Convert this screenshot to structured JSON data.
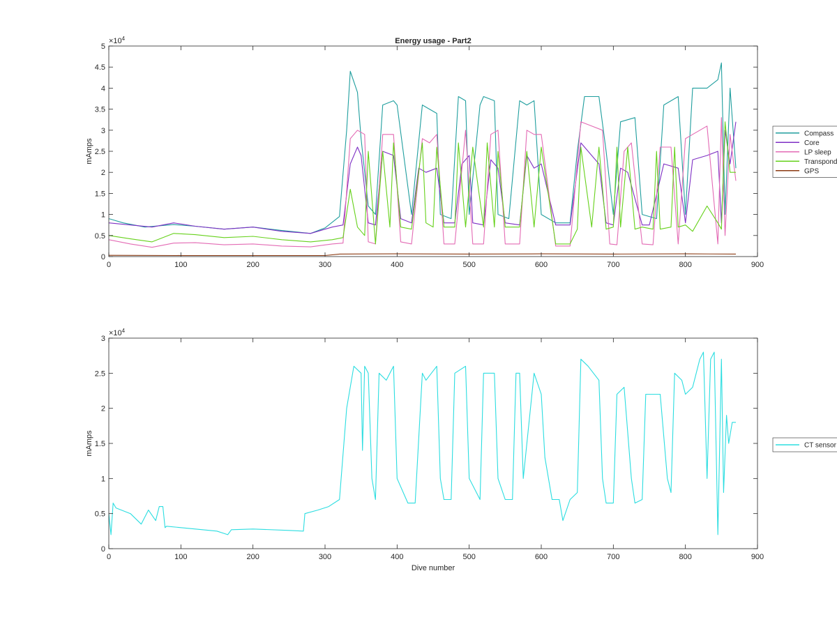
{
  "figure": {
    "background": "#ffffff",
    "axis_color": "#262626"
  },
  "chart_data": [
    {
      "type": "line",
      "title": "Energy usage - Part2",
      "xlabel": "",
      "ylabel": "mAmps",
      "xlim": [
        0,
        900
      ],
      "ylim": [
        0,
        50000
      ],
      "exponent_label": "×10^4",
      "x_ticks": [
        0,
        100,
        200,
        300,
        400,
        500,
        600,
        700,
        800,
        900
      ],
      "y_ticks": [
        0,
        0.5,
        1,
        1.5,
        2,
        2.5,
        3,
        3.5,
        4,
        4.5,
        5
      ],
      "grid": false,
      "legend_placement": "outside-right",
      "series": [
        {
          "name": "Compass",
          "color": "#1f9e9e",
          "x": [
            0,
            20,
            50,
            90,
            120,
            160,
            200,
            240,
            280,
            300,
            320,
            330,
            335,
            345,
            350,
            360,
            370,
            380,
            395,
            400,
            420,
            435,
            445,
            455,
            460,
            475,
            485,
            495,
            500,
            515,
            520,
            535,
            540,
            555,
            570,
            580,
            590,
            600,
            620,
            640,
            650,
            660,
            680,
            690,
            700,
            710,
            730,
            740,
            760,
            770,
            790,
            800,
            810,
            830,
            845,
            850,
            855,
            862,
            870
          ],
          "y": [
            9000,
            8000,
            7000,
            7600,
            7200,
            6500,
            7000,
            6200,
            5500,
            6800,
            9500,
            30000,
            44000,
            39000,
            28000,
            12000,
            10000,
            36000,
            37000,
            36000,
            10000,
            36000,
            35000,
            34000,
            10000,
            9000,
            38000,
            37000,
            10000,
            36000,
            38000,
            37000,
            10000,
            9000,
            37000,
            36000,
            37000,
            10000,
            8000,
            8000,
            25000,
            38000,
            38000,
            25000,
            10000,
            32000,
            33000,
            10000,
            9000,
            36000,
            38000,
            10000,
            40000,
            40000,
            42000,
            46000,
            10000,
            40000,
            21000
          ]
        },
        {
          "name": "Core",
          "color": "#7e2fc4",
          "x": [
            0,
            30,
            60,
            90,
            120,
            160,
            200,
            240,
            280,
            310,
            325,
            335,
            345,
            350,
            360,
            370,
            380,
            395,
            405,
            420,
            430,
            440,
            455,
            465,
            480,
            490,
            500,
            505,
            520,
            530,
            540,
            550,
            570,
            580,
            590,
            600,
            620,
            640,
            655,
            670,
            680,
            690,
            700,
            710,
            720,
            740,
            750,
            770,
            790,
            800,
            810,
            830,
            845,
            850,
            855,
            862,
            870
          ],
          "y": [
            8000,
            7500,
            7000,
            8000,
            7200,
            6500,
            7000,
            6000,
            5500,
            7000,
            7500,
            22000,
            26000,
            24000,
            8000,
            7500,
            25000,
            24000,
            9000,
            8000,
            21000,
            20000,
            21000,
            8000,
            8000,
            22000,
            24000,
            8000,
            7500,
            23000,
            21000,
            8000,
            7500,
            24000,
            21000,
            22000,
            7500,
            7500,
            27000,
            24000,
            22000,
            8000,
            7500,
            21000,
            20000,
            7500,
            7500,
            22000,
            21000,
            8000,
            23000,
            24000,
            25000,
            8000,
            30000,
            22000,
            32000
          ]
        },
        {
          "name": "LP sleep",
          "color": "#e36ab4",
          "x": [
            0,
            30,
            60,
            90,
            120,
            160,
            200,
            240,
            280,
            310,
            325,
            335,
            345,
            355,
            360,
            370,
            380,
            395,
            405,
            420,
            435,
            445,
            455,
            465,
            480,
            495,
            505,
            520,
            530,
            540,
            550,
            570,
            580,
            590,
            600,
            620,
            640,
            655,
            670,
            685,
            695,
            705,
            715,
            725,
            740,
            755,
            765,
            780,
            790,
            800,
            810,
            830,
            845,
            850,
            855,
            862,
            870
          ],
          "y": [
            4000,
            3000,
            2200,
            3200,
            3300,
            2800,
            3000,
            2500,
            2300,
            3000,
            3200,
            28000,
            30000,
            29000,
            3500,
            3000,
            29000,
            29000,
            3500,
            3000,
            28000,
            27000,
            29000,
            3000,
            3000,
            30000,
            3000,
            3000,
            29000,
            30000,
            3000,
            3000,
            30000,
            29000,
            29000,
            2500,
            2500,
            32000,
            31000,
            30000,
            3000,
            2800,
            25000,
            27000,
            3000,
            2800,
            26000,
            26000,
            3000,
            28000,
            29000,
            31000,
            3000,
            33000,
            5000,
            29000,
            18000
          ]
        },
        {
          "name": "Transponder",
          "color": "#66d11b",
          "x": [
            0,
            30,
            60,
            90,
            120,
            160,
            200,
            240,
            280,
            310,
            325,
            335,
            345,
            355,
            360,
            370,
            380,
            390,
            395,
            405,
            420,
            435,
            440,
            450,
            455,
            465,
            480,
            485,
            495,
            505,
            520,
            525,
            535,
            540,
            550,
            570,
            580,
            590,
            600,
            620,
            640,
            650,
            655,
            670,
            680,
            690,
            700,
            705,
            710,
            720,
            730,
            740,
            755,
            760,
            765,
            780,
            785,
            790,
            800,
            810,
            830,
            845,
            850,
            855,
            862,
            870
          ],
          "y": [
            5000,
            4200,
            3500,
            5500,
            5200,
            4500,
            4800,
            4000,
            3500,
            4000,
            4500,
            16000,
            7000,
            5000,
            25000,
            3000,
            25000,
            7000,
            27000,
            7000,
            6500,
            27000,
            8000,
            7000,
            26000,
            7000,
            7000,
            27000,
            7000,
            26000,
            7000,
            27000,
            7000,
            25000,
            7000,
            7000,
            25000,
            7000,
            26000,
            3000,
            3000,
            6500,
            26000,
            7000,
            26000,
            6500,
            7000,
            26000,
            7000,
            26000,
            6500,
            7000,
            6500,
            25000,
            6500,
            7000,
            26000,
            7000,
            7500,
            6000,
            12000,
            8000,
            6500,
            32000,
            20000,
            20000
          ]
        },
        {
          "name": "GPS",
          "color": "#8b3a12",
          "x": [
            0,
            100,
            200,
            300,
            320,
            400,
            500,
            600,
            700,
            800,
            870
          ],
          "y": [
            300,
            250,
            250,
            250,
            600,
            650,
            600,
            650,
            600,
            650,
            600
          ]
        }
      ]
    },
    {
      "type": "line",
      "title": "",
      "xlabel": "Dive number",
      "ylabel": "mAmps",
      "xlim": [
        0,
        900
      ],
      "ylim": [
        0,
        30000
      ],
      "exponent_label": "×10^4",
      "x_ticks": [
        0,
        100,
        200,
        300,
        400,
        500,
        600,
        700,
        800,
        900
      ],
      "y_ticks": [
        0,
        0.5,
        1,
        1.5,
        2,
        2.5,
        3
      ],
      "grid": false,
      "legend_placement": "outside-right",
      "series": [
        {
          "name": "CT sensor",
          "color": "#2bdde0",
          "x": [
            0,
            3,
            6,
            10,
            30,
            45,
            55,
            65,
            70,
            75,
            78,
            80,
            100,
            150,
            165,
            170,
            200,
            250,
            270,
            272,
            290,
            305,
            320,
            330,
            340,
            350,
            352,
            355,
            360,
            365,
            370,
            375,
            385,
            395,
            400,
            415,
            425,
            435,
            440,
            455,
            460,
            465,
            475,
            480,
            495,
            500,
            515,
            520,
            535,
            540,
            550,
            560,
            565,
            570,
            575,
            590,
            600,
            605,
            615,
            625,
            630,
            640,
            650,
            655,
            665,
            680,
            685,
            690,
            700,
            705,
            715,
            725,
            730,
            740,
            745,
            760,
            765,
            775,
            780,
            785,
            795,
            800,
            810,
            820,
            825,
            830,
            835,
            840,
            845,
            850,
            853,
            857,
            860,
            865,
            870
          ],
          "y": [
            5000,
            2000,
            6500,
            5800,
            5000,
            3500,
            5500,
            4000,
            6000,
            6000,
            3000,
            3200,
            3000,
            2500,
            2000,
            2700,
            2800,
            2600,
            2500,
            5000,
            5500,
            6000,
            7000,
            20000,
            26000,
            25000,
            14000,
            26000,
            25000,
            10000,
            7000,
            25000,
            24000,
            26000,
            10000,
            6500,
            6500,
            25000,
            24000,
            26000,
            10000,
            7000,
            7000,
            25000,
            26000,
            10000,
            7000,
            25000,
            25000,
            10000,
            7000,
            7000,
            25000,
            25000,
            10000,
            25000,
            22000,
            13000,
            7000,
            7000,
            4000,
            7000,
            8000,
            27000,
            26000,
            24000,
            10000,
            6500,
            6500,
            22000,
            23000,
            10000,
            6500,
            7000,
            22000,
            22000,
            22000,
            10000,
            8000,
            25000,
            24000,
            22000,
            23000,
            27000,
            28000,
            10000,
            27000,
            28000,
            2000,
            27000,
            8000,
            19000,
            15000,
            18000,
            18000
          ]
        }
      ]
    }
  ]
}
